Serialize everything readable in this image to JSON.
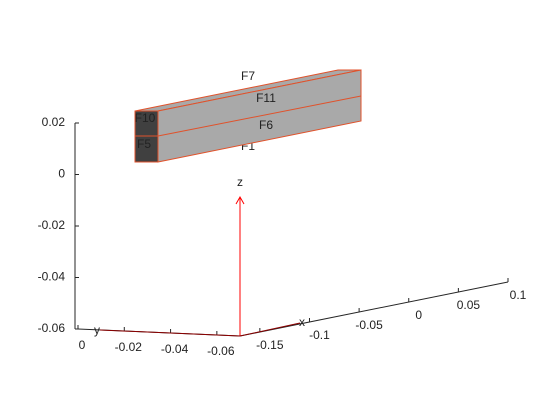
{
  "chart_data": {
    "type": "geometry3d",
    "axis_labels": {
      "x": "x",
      "y": "y",
      "z": "z"
    },
    "face_labels": [
      "F1",
      "F5",
      "F6",
      "F7",
      "F10",
      "F11"
    ],
    "xlim": [
      -0.17,
      0.1
    ],
    "xticks": [
      -0.15,
      -0.1,
      -0.05,
      0,
      0.05,
      0.1
    ],
    "ylim": [
      0,
      -0.07
    ],
    "yticks": [
      0,
      -0.02,
      -0.04,
      -0.06
    ],
    "zlim": [
      -0.06,
      0.02
    ],
    "zticks": [
      0.02,
      0,
      -0.02,
      -0.04,
      -0.06
    ],
    "face_color": "#a9a9a9",
    "edge_color": "#e0522b"
  }
}
